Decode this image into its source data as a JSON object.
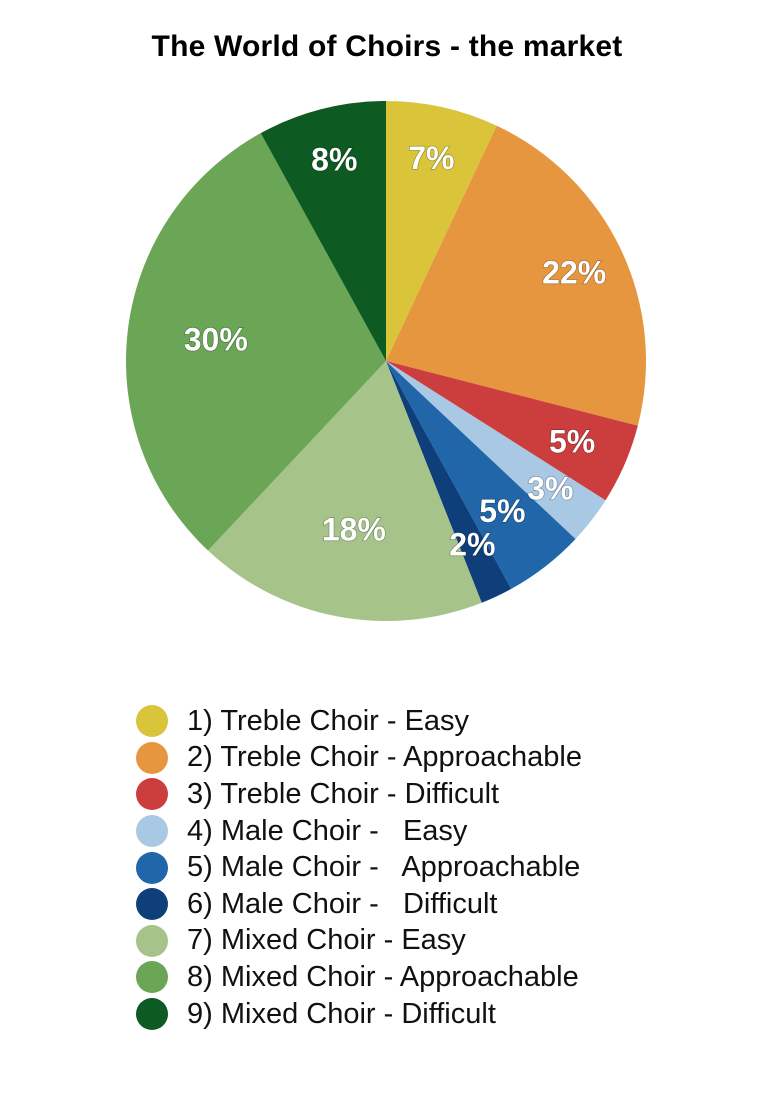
{
  "chart_data": {
    "type": "pie",
    "title": "The World of Choirs - the market",
    "categories": [
      "1) Treble Choir - Easy",
      "2) Treble Choir - Approachable",
      "3) Treble Choir - Difficult",
      "4) Male Choir -   Easy",
      "5) Male Choir -   Approachable",
      "6) Male Choir -   Difficult",
      "7) Mixed Choir - Easy",
      "8) Mixed Choir - Approachable",
      "9) Mixed Choir - Difficult"
    ],
    "values": [
      7,
      22,
      5,
      3,
      5,
      2,
      18,
      30,
      8
    ],
    "labels": [
      "7%",
      "22%",
      "5%",
      "3%",
      "5%",
      "2%",
      "18%",
      "30%",
      "8%"
    ],
    "colors": [
      "#d9c43a",
      "#e6963f",
      "#cc3d3d",
      "#a9c8e4",
      "#2266aa",
      "#0f3f7a",
      "#a6c48a",
      "#6aa655",
      "#0d5a22"
    ],
    "unit": "%",
    "legend_position": "bottom"
  }
}
